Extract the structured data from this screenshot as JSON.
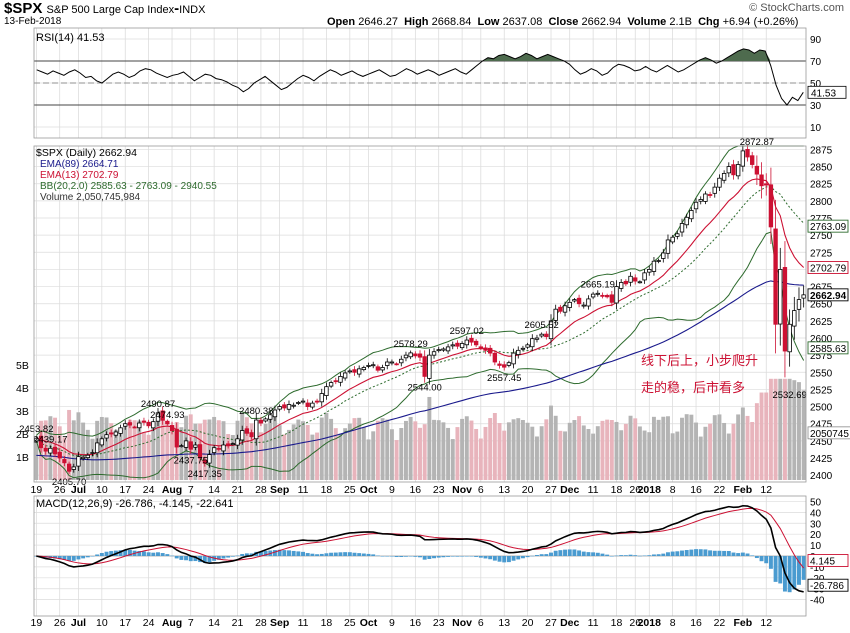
{
  "header": {
    "symbol": "$SPX",
    "name": "S&P 500 Large Cap Index",
    "exchange": "INDX",
    "date": "13-Feb-2018",
    "open_label": "Open",
    "open": "2646.27",
    "high_label": "High",
    "high": "2668.84",
    "low_label": "Low",
    "low": "2637.08",
    "close_label": "Close",
    "close": "2662.94",
    "volume_label": "Volume",
    "volume": "2.1B",
    "chg_label": "Chg",
    "chg": "+6.94 (+0.26%)",
    "copyright": "© StockCharts.com"
  },
  "colors": {
    "rsi_line": "#000000",
    "rsi_fill": "#4e6b4e",
    "ema89": "#1a1a8c",
    "ema13": "#cc1133",
    "bb": "#2e6b2e",
    "candle_up": "#000000",
    "candle_down": "#cc1133",
    "vol_up": "#b4b4b4",
    "vol_down": "#e8b4bc",
    "macd": "#000000",
    "signal": "#cc1133",
    "hist": "#4a9bd0",
    "annotation": "#cc1133"
  },
  "chart_data": [
    {
      "type": "line",
      "panel": "RSI",
      "title": "RSI(14) 41.53",
      "ylim": [
        0,
        100
      ],
      "y_ticks": [
        "90",
        "70",
        "50",
        "30",
        "10"
      ],
      "levels": [
        70,
        30
      ],
      "last_value": "41.53",
      "values": [
        62,
        60,
        58,
        61,
        59,
        57,
        60,
        62,
        59,
        55,
        56,
        52,
        50,
        54,
        58,
        60,
        58,
        55,
        57,
        61,
        63,
        62,
        59,
        57,
        55,
        57,
        58,
        60,
        56,
        52,
        55,
        58,
        57,
        54,
        53,
        51,
        48,
        46,
        42,
        45,
        50,
        53,
        56,
        52,
        48,
        44,
        46,
        50,
        54,
        57,
        55,
        52,
        56,
        59,
        62,
        60,
        57,
        59,
        61,
        58,
        56,
        58,
        60,
        62,
        59,
        56,
        57,
        60,
        63,
        61,
        58,
        60,
        62,
        60,
        57,
        59,
        61,
        63,
        60,
        58,
        62,
        66,
        70,
        73,
        72,
        75,
        76,
        74,
        72,
        74,
        77,
        75,
        72,
        74,
        76,
        74,
        72,
        70,
        67,
        62,
        58,
        60,
        63,
        61,
        57,
        59,
        64,
        67,
        66,
        64,
        61,
        62,
        65,
        62,
        60,
        63,
        66,
        63,
        60,
        62,
        65,
        68,
        71,
        73,
        71,
        68,
        70,
        73,
        76,
        79,
        81,
        80,
        77,
        80,
        79,
        66,
        48,
        36,
        30,
        37,
        34,
        41.53
      ]
    },
    {
      "type": "candlestick",
      "panel": "Price",
      "title": "$SPX (Daily) 2662.94",
      "legend": [
        "EMA(89) 2664.71",
        "EMA(13) 2702.79",
        "BB(20,2.0) 2585.63 - 2763.09 - 2940.55",
        "Volume 2,050,745,984"
      ],
      "ylim": [
        2390,
        2880
      ],
      "y_ticks": [
        "2875",
        "2850",
        "2825",
        "2800",
        "2775",
        "2750",
        "2725",
        "2700",
        "2675",
        "2650",
        "2625",
        "2600",
        "2575",
        "2550",
        "2525",
        "2500",
        "2475",
        "2450",
        "2425",
        "2400"
      ],
      "volume_ticks": [
        "5B",
        "4B",
        "3B",
        "2B",
        "1B"
      ],
      "x_labels": [
        "19",
        "26",
        "Jul",
        "10",
        "17",
        "24",
        "Aug",
        "7",
        "14",
        "21",
        "28",
        "Sep",
        "11",
        "18",
        "25",
        "Oct",
        "9",
        "16",
        "23",
        "Nov",
        "6",
        "13",
        "20",
        "27",
        "Dec",
        "11",
        "18",
        "26",
        "2018",
        "8",
        "16",
        "22",
        "Feb",
        "12"
      ],
      "close": [
        2453.82,
        2440,
        2435,
        2439.17,
        2431,
        2425,
        2418,
        2405.7,
        2412,
        2427,
        2426,
        2429,
        2433,
        2447,
        2453,
        2459,
        2460,
        2463,
        2469,
        2475,
        2473,
        2470,
        2476,
        2477,
        2472,
        2478,
        2490.87,
        2480,
        2474.93,
        2465,
        2441,
        2443,
        2450,
        2437.75,
        2444,
        2425,
        2417.35,
        2430,
        2440,
        2438,
        2444,
        2443,
        2446,
        2453,
        2465,
        2461,
        2456,
        2480.38,
        2476,
        2482,
        2488,
        2495,
        2500,
        2498,
        2503,
        2502,
        2506,
        2508,
        2500,
        2505,
        2507,
        2519,
        2529,
        2535,
        2537,
        2544,
        2549,
        2552,
        2550,
        2555,
        2557,
        2560,
        2561,
        2553,
        2557,
        2565,
        2565,
        2562,
        2569,
        2575,
        2578.29,
        2574,
        2572,
        2544.0,
        2575,
        2580,
        2583,
        2584,
        2587,
        2590,
        2588,
        2592,
        2597.02,
        2594,
        2590,
        2586,
        2582,
        2578,
        2565,
        2560,
        2557.45,
        2564,
        2578,
        2582,
        2585,
        2590,
        2599,
        2600,
        2605.52,
        2602,
        2625,
        2642,
        2639,
        2647,
        2652,
        2656,
        2650,
        2648,
        2657,
        2664,
        2665.19,
        2662,
        2660,
        2652,
        2675,
        2681,
        2679,
        2690,
        2683,
        2682,
        2695,
        2700,
        2712,
        2713,
        2724,
        2743,
        2747,
        2752,
        2767,
        2776,
        2786,
        2798,
        2802,
        2810,
        2808,
        2820,
        2833,
        2840,
        2850,
        2838,
        2853,
        2872.87,
        2864,
        2853,
        2839,
        2822,
        2823,
        2762,
        2620,
        2700,
        2581,
        2620,
        2640,
        2656,
        2662.94
      ],
      "price_annotations": [
        "2453.82",
        "2439.17",
        "2405.70",
        "2490.87",
        "2474.93",
        "2437.75",
        "2417.35",
        "2480.38",
        "2578.29",
        "2544.00",
        "2597.02",
        "2557.45",
        "2605.52",
        "2665.19",
        "2872.87",
        "2532.69"
      ],
      "price_flags": [
        "2763.09",
        "2702.79",
        "2662.94",
        "2585.63"
      ],
      "volume_flag": "2050745",
      "ema89_last": 2664.71,
      "ema13_last": 2702.79,
      "bb_last": [
        2585.63,
        2763.09,
        2940.55
      ],
      "volume_last": 2050745984
    },
    {
      "type": "line",
      "panel": "MACD",
      "title": "MACD(12,26,9) -26.786, -4.145, -22.641",
      "ylim": [
        -55,
        55
      ],
      "y_ticks": [
        "50",
        "40",
        "30",
        "20",
        "10",
        "0",
        "-10",
        "-20",
        "-30",
        "-40"
      ],
      "macd_last": -26.786,
      "signal_last": -4.145,
      "hist_last": -22.641,
      "flags": [
        "4.145",
        "-26.786"
      ]
    }
  ],
  "annotation": {
    "line1": "线下后上，小步爬升",
    "line2": "走的稳，后市看多"
  }
}
